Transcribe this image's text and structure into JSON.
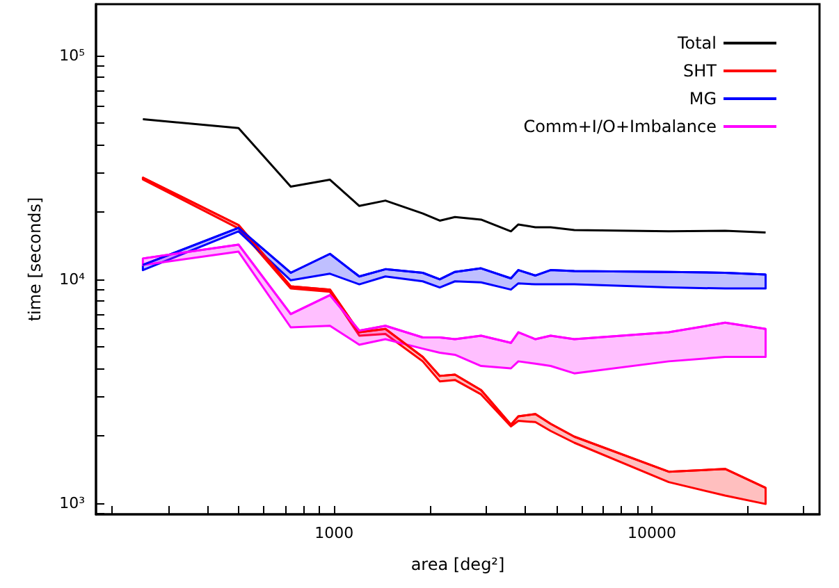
{
  "chart_data": {
    "type": "line",
    "xlabel": "area [deg²]",
    "ylabel": "time [seconds]",
    "log": "xy",
    "legend": "top right",
    "marker": "none",
    "line_style": "solid",
    "xlim": [
      178,
      33700
    ],
    "ylim": [
      890,
      170000
    ],
    "xticks": [
      {
        "value": 200,
        "label": null
      },
      {
        "value": 300,
        "label": null
      },
      {
        "value": 400,
        "label": null
      },
      {
        "value": 500,
        "label": null
      },
      {
        "value": 600,
        "label": null
      },
      {
        "value": 700,
        "label": null
      },
      {
        "value": 800,
        "label": null
      },
      {
        "value": 900,
        "label": null
      },
      1000,
      {
        "value": 2000,
        "label": null
      },
      {
        "value": 3000,
        "label": null
      },
      {
        "value": 4000,
        "label": null
      },
      {
        "value": 5000,
        "label": null
      },
      {
        "value": 6000,
        "label": null
      },
      {
        "value": 7000,
        "label": null
      },
      {
        "value": 8000,
        "label": null
      },
      {
        "value": 9000,
        "label": null
      },
      10000,
      {
        "value": 20000,
        "label": null
      },
      {
        "value": 30000,
        "label": null
      }
    ],
    "yticks": [
      {
        "value": 900,
        "label": null
      },
      {
        "value": 1000,
        "label": "10³"
      },
      {
        "value": 2000,
        "label": null
      },
      {
        "value": 3000,
        "label": null
      },
      {
        "value": 4000,
        "label": null
      },
      {
        "value": 5000,
        "label": null
      },
      {
        "value": 6000,
        "label": null
      },
      {
        "value": 7000,
        "label": null
      },
      {
        "value": 8000,
        "label": null
      },
      {
        "value": 9000,
        "label": null
      },
      {
        "value": 10000,
        "label": "10⁴"
      },
      {
        "value": 20000,
        "label": null
      },
      {
        "value": 30000,
        "label": null
      },
      {
        "value": 40000,
        "label": null
      },
      {
        "value": 50000,
        "label": null
      },
      {
        "value": 60000,
        "label": null
      },
      {
        "value": 70000,
        "label": null
      },
      {
        "value": 80000,
        "label": null
      },
      {
        "value": 90000,
        "label": null
      },
      {
        "value": 100000,
        "label": "10⁵"
      }
    ],
    "x": [
      250,
      500,
      730,
      970,
      1200,
      1450,
      1900,
      2150,
      2400,
      2900,
      3600,
      3800,
      4300,
      4800,
      5700,
      11300,
      17000,
      22800
    ],
    "series": [
      {
        "name": "Total",
        "color": "#000000",
        "values": [
          52000,
          47500,
          26000,
          27900,
          21300,
          22500,
          19700,
          18300,
          19000,
          18500,
          16400,
          17600,
          17100,
          17100,
          16600,
          16400,
          16500,
          16200
        ]
      },
      {
        "name": "SHT",
        "color": "#ff0000",
        "values": [
          28500,
          17500,
          9300,
          9000,
          5800,
          6000,
          4500,
          3700,
          3750,
          3200,
          2240,
          2440,
          2500,
          2260,
          1980,
          1380,
          1420,
          1170
        ],
        "upper": [
          28500,
          17500,
          9300,
          9000,
          5800,
          6000,
          4500,
          3700,
          3750,
          3200,
          2240,
          2440,
          2500,
          2260,
          1980,
          1380,
          1420,
          1170
        ],
        "lower": [
          28000,
          16900,
          9100,
          8800,
          5600,
          5700,
          4300,
          3500,
          3550,
          3060,
          2200,
          2330,
          2300,
          2100,
          1860,
          1240,
          1080,
          990
        ]
      },
      {
        "name": "MG",
        "color": "#0000ff",
        "values": [
          11600,
          17000,
          10700,
          13000,
          10300,
          11100,
          10700,
          10000,
          10800,
          11200,
          10100,
          11000,
          10400,
          11000,
          10900,
          10800,
          10700,
          10500
        ],
        "upper": [
          11600,
          17000,
          10700,
          13000,
          10300,
          11100,
          10700,
          10000,
          10800,
          11200,
          10100,
          11000,
          10400,
          11000,
          10900,
          10800,
          10700,
          10500
        ],
        "lower": [
          11000,
          16400,
          9900,
          10600,
          9500,
          10300,
          9800,
          9200,
          9800,
          9700,
          9000,
          9600,
          9500,
          9500,
          9500,
          9200,
          9100,
          9100
        ]
      },
      {
        "name": "Comm+I/O+Imbalance",
        "color": "#ff00ff",
        "values": [
          12400,
          14300,
          7000,
          8500,
          5900,
          6200,
          5500,
          5500,
          5400,
          5600,
          5200,
          5800,
          5400,
          5600,
          5400,
          5800,
          6400,
          6000
        ],
        "upper": [
          12400,
          14300,
          7000,
          8500,
          5900,
          6200,
          5500,
          5500,
          5400,
          5600,
          5200,
          5800,
          5400,
          5600,
          5400,
          5800,
          6400,
          6000
        ],
        "lower": [
          11600,
          13300,
          6100,
          6200,
          5100,
          5400,
          4900,
          4700,
          4600,
          4100,
          4000,
          4300,
          4200,
          4100,
          3800,
          4300,
          4500,
          4500
        ]
      }
    ]
  }
}
